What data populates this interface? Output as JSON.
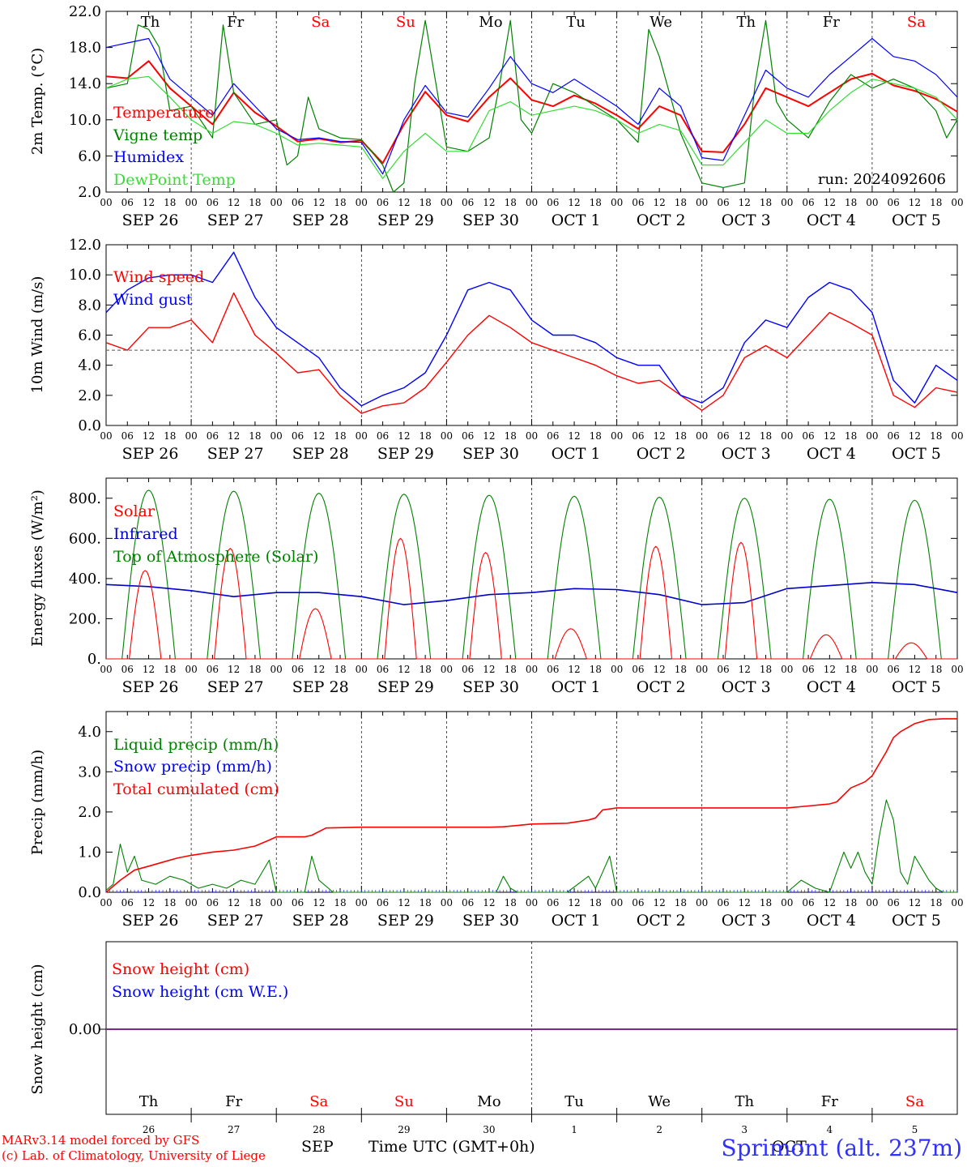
{
  "chart_data": [
    {
      "type": "line",
      "ylabel": "2m Temp. (°C)",
      "ylim": [
        2.0,
        22.0
      ],
      "yticks": [
        "2.0",
        "6.0",
        "10.0",
        "14.0",
        "18.0",
        "22.0"
      ],
      "annotation": "run: 2024092606",
      "series": [
        {
          "name": "Temperature",
          "color": "#ff0000",
          "x": [
            0,
            6,
            12,
            18,
            24,
            30,
            36,
            42,
            48,
            54,
            60,
            66,
            72,
            78,
            84,
            90,
            96,
            102,
            108,
            114,
            120,
            126,
            132,
            138,
            144,
            150,
            156,
            162,
            168,
            174,
            180,
            186,
            192,
            198,
            204,
            210,
            216,
            222,
            228,
            234,
            240
          ],
          "values": [
            14.8,
            14.6,
            16.5,
            13.5,
            11.5,
            9.5,
            13.0,
            10.8,
            9.3,
            7.6,
            7.9,
            7.5,
            7.7,
            5.2,
            9.5,
            13.1,
            10.5,
            9.8,
            12.5,
            14.6,
            12.2,
            11.5,
            12.7,
            11.8,
            10.5,
            9.0,
            11.5,
            10.5,
            6.5,
            6.4,
            9.5,
            13.5,
            12.5,
            11.5,
            13.0,
            14.5,
            15.1,
            13.8,
            13.2,
            12.3,
            10.9
          ]
        },
        {
          "name": "Vigne temp",
          "color": "#008000",
          "x": [
            0,
            6,
            9,
            12,
            15,
            18,
            24,
            30,
            33,
            36,
            42,
            48,
            51,
            54,
            57,
            60,
            66,
            72,
            78,
            81,
            84,
            87,
            90,
            96,
            102,
            108,
            111,
            114,
            117,
            120,
            126,
            132,
            138,
            144,
            150,
            153,
            156,
            162,
            168,
            174,
            180,
            183,
            186,
            189,
            192,
            198,
            204,
            210,
            216,
            222,
            228,
            234,
            237,
            240
          ],
          "values": [
            13.5,
            14.0,
            20.5,
            20.0,
            18.0,
            11.0,
            11.5,
            8.0,
            20.5,
            13.0,
            9.5,
            10.0,
            5.0,
            6.0,
            12.5,
            9.0,
            8.0,
            7.8,
            5.0,
            2.0,
            3.0,
            14.0,
            21.0,
            7.0,
            6.5,
            8.0,
            14.0,
            21.0,
            10.0,
            8.5,
            14.0,
            13.0,
            11.5,
            10.0,
            7.5,
            20.0,
            17.0,
            8.5,
            3.0,
            2.5,
            3.0,
            14.0,
            21.0,
            12.0,
            10.0,
            8.0,
            12.0,
            15.0,
            13.5,
            14.5,
            13.5,
            11.0,
            8.0,
            10.0
          ]
        },
        {
          "name": "Humidex",
          "color": "#0000ff",
          "x": [
            0,
            6,
            12,
            18,
            24,
            30,
            36,
            42,
            48,
            54,
            60,
            66,
            72,
            78,
            84,
            90,
            96,
            102,
            108,
            114,
            120,
            126,
            132,
            138,
            144,
            150,
            156,
            162,
            168,
            174,
            180,
            186,
            192,
            198,
            204,
            210,
            216,
            222,
            228,
            234,
            240
          ],
          "values": [
            18.0,
            18.5,
            19.0,
            14.5,
            12.5,
            10.5,
            14.0,
            11.5,
            9.0,
            7.8,
            8.0,
            7.6,
            7.5,
            4.0,
            10.0,
            13.8,
            10.8,
            10.3,
            13.5,
            17.0,
            14.0,
            13.0,
            14.5,
            13.0,
            11.5,
            9.5,
            13.5,
            11.5,
            5.8,
            5.5,
            10.5,
            15.5,
            13.5,
            12.5,
            15.0,
            17.0,
            19.0,
            17.0,
            16.5,
            15.0,
            12.5
          ]
        },
        {
          "name": "DewPoint Temp",
          "color": "#33dd33",
          "x": [
            0,
            6,
            12,
            18,
            24,
            30,
            36,
            42,
            48,
            54,
            60,
            66,
            72,
            78,
            84,
            90,
            96,
            102,
            108,
            114,
            120,
            126,
            132,
            138,
            144,
            150,
            156,
            162,
            168,
            174,
            180,
            186,
            192,
            198,
            204,
            210,
            216,
            222,
            228,
            234,
            240
          ],
          "values": [
            13.5,
            14.5,
            14.8,
            12.5,
            10.0,
            8.5,
            9.8,
            9.5,
            8.5,
            7.2,
            7.4,
            7.2,
            7.0,
            3.5,
            6.5,
            8.5,
            6.5,
            6.5,
            11.0,
            12.0,
            10.5,
            11.0,
            11.5,
            11.0,
            10.0,
            8.5,
            9.5,
            8.8,
            5.0,
            5.0,
            7.5,
            10.0,
            8.5,
            8.5,
            11.0,
            13.0,
            14.5,
            14.0,
            13.5,
            12.5,
            10.0
          ]
        }
      ]
    },
    {
      "type": "line",
      "ylabel": "10m Wind (m/s)",
      "ylim": [
        0.0,
        12.0
      ],
      "yticks": [
        "0.0",
        "2.0",
        "4.0",
        "6.0",
        "8.0",
        "10.0",
        "12.0"
      ],
      "reference_line": 5.0,
      "series": [
        {
          "name": "Wind speed",
          "color": "#ff0000",
          "x": [
            0,
            6,
            12,
            18,
            24,
            30,
            36,
            42,
            48,
            54,
            60,
            66,
            72,
            78,
            84,
            90,
            96,
            102,
            108,
            114,
            120,
            126,
            132,
            138,
            144,
            150,
            156,
            162,
            168,
            174,
            180,
            186,
            192,
            198,
            204,
            210,
            216,
            222,
            228,
            234,
            240
          ],
          "values": [
            5.5,
            5.0,
            6.5,
            6.5,
            7.0,
            5.5,
            8.8,
            6.0,
            4.8,
            3.5,
            3.7,
            2.0,
            0.8,
            1.3,
            1.5,
            2.5,
            4.2,
            6.0,
            7.3,
            6.5,
            5.5,
            5.0,
            4.5,
            4.0,
            3.3,
            2.8,
            3.0,
            2.0,
            1.0,
            2.0,
            4.5,
            5.3,
            4.5,
            6.0,
            7.5,
            6.8,
            6.0,
            2.0,
            1.2,
            2.5,
            2.2
          ]
        },
        {
          "name": "Wind gust",
          "color": "#0000ff",
          "x": [
            0,
            6,
            12,
            18,
            24,
            30,
            36,
            42,
            48,
            54,
            60,
            66,
            72,
            78,
            84,
            90,
            96,
            102,
            108,
            114,
            120,
            126,
            132,
            138,
            144,
            150,
            156,
            162,
            168,
            174,
            180,
            186,
            192,
            198,
            204,
            210,
            216,
            222,
            228,
            234,
            240
          ],
          "values": [
            7.5,
            9.0,
            9.8,
            10.0,
            10.0,
            9.5,
            11.5,
            8.5,
            6.5,
            5.5,
            4.5,
            2.5,
            1.3,
            2.0,
            2.5,
            3.5,
            6.0,
            9.0,
            9.5,
            9.0,
            7.0,
            6.0,
            6.0,
            5.5,
            4.5,
            4.0,
            4.0,
            2.0,
            1.5,
            2.5,
            5.5,
            7.0,
            6.5,
            8.5,
            9.5,
            9.0,
            7.5,
            3.0,
            1.5,
            4.0,
            3.0
          ]
        }
      ]
    },
    {
      "type": "line",
      "ylabel": "Energy fluxes (W/m²)",
      "ylim": [
        0,
        900
      ],
      "yticks": [
        "0.",
        "200.",
        "400.",
        "600.",
        "800."
      ],
      "daily_toa_peak": [
        840,
        835,
        825,
        820,
        815,
        810,
        805,
        800,
        795,
        790
      ],
      "daily_solar_peak": [
        440,
        550,
        250,
        600,
        530,
        150,
        560,
        580,
        120,
        80
      ],
      "series": [
        {
          "name": "Solar",
          "color": "#ff0000"
        },
        {
          "name": "Infrared",
          "color": "#0000cc",
          "x": [
            0,
            12,
            24,
            36,
            48,
            60,
            72,
            84,
            96,
            108,
            120,
            132,
            144,
            156,
            168,
            180,
            192,
            204,
            216,
            228,
            240
          ],
          "values": [
            370,
            360,
            340,
            310,
            330,
            330,
            310,
            270,
            290,
            320,
            330,
            350,
            345,
            320,
            270,
            280,
            350,
            365,
            380,
            370,
            330
          ]
        },
        {
          "name": "Top of Atmosphere (Solar)",
          "color": "#008000"
        }
      ]
    },
    {
      "type": "line",
      "ylabel": "Precip (mm/h)",
      "ylim": [
        0.0,
        4.5
      ],
      "yticks": [
        "0.0",
        "1.0",
        "2.0",
        "3.0",
        "4.0"
      ],
      "series": [
        {
          "name": "Liquid precip (mm/h)",
          "color": "#008000",
          "x": [
            0,
            2,
            4,
            6,
            8,
            10,
            14,
            18,
            22,
            26,
            30,
            34,
            38,
            42,
            46,
            48,
            52,
            56,
            58,
            60,
            64,
            68,
            72,
            80,
            90,
            100,
            110,
            112,
            114,
            116,
            120,
            130,
            136,
            138,
            140,
            142,
            144,
            150,
            160,
            170,
            180,
            192,
            196,
            200,
            204,
            208,
            210,
            212,
            214,
            216,
            218,
            220,
            222,
            224,
            226,
            228,
            230,
            232,
            234,
            236,
            240
          ],
          "values": [
            0.05,
            0.2,
            1.2,
            0.5,
            0.9,
            0.3,
            0.2,
            0.4,
            0.3,
            0.1,
            0.2,
            0.1,
            0.3,
            0.2,
            0.8,
            0.0,
            0.0,
            0.0,
            0.9,
            0.3,
            0.0,
            0.0,
            0.0,
            0.0,
            0.0,
            0.0,
            0.0,
            0.4,
            0.1,
            0.0,
            0.0,
            0.0,
            0.4,
            0.1,
            0.5,
            0.9,
            0.0,
            0.0,
            0.0,
            0.0,
            0.0,
            0.0,
            0.3,
            0.1,
            0.0,
            1.0,
            0.6,
            1.0,
            0.5,
            0.2,
            1.4,
            2.3,
            1.8,
            0.5,
            0.2,
            0.9,
            0.6,
            0.3,
            0.1,
            0.0,
            0.0
          ]
        },
        {
          "name": "Snow precip (mm/h)",
          "color": "#0000ff",
          "x": [
            0,
            240
          ],
          "values": [
            0.0,
            0.0
          ]
        },
        {
          "name": "Total cumulated (cm)",
          "color": "#ff0000",
          "x": [
            0,
            4,
            8,
            12,
            16,
            20,
            24,
            30,
            36,
            42,
            46,
            48,
            56,
            58,
            62,
            72,
            84,
            96,
            108,
            112,
            120,
            130,
            136,
            138,
            140,
            144,
            150,
            160,
            170,
            180,
            192,
            198,
            204,
            206,
            210,
            214,
            216,
            218,
            220,
            222,
            224,
            228,
            232,
            236,
            240
          ],
          "values": [
            0.0,
            0.3,
            0.55,
            0.65,
            0.75,
            0.85,
            0.92,
            1.0,
            1.05,
            1.15,
            1.3,
            1.38,
            1.38,
            1.42,
            1.6,
            1.62,
            1.62,
            1.62,
            1.62,
            1.63,
            1.7,
            1.72,
            1.8,
            1.85,
            2.05,
            2.1,
            2.1,
            2.1,
            2.1,
            2.1,
            2.1,
            2.15,
            2.2,
            2.25,
            2.6,
            2.75,
            2.9,
            3.2,
            3.5,
            3.85,
            4.0,
            4.2,
            4.3,
            4.32,
            4.32
          ]
        }
      ]
    },
    {
      "type": "line",
      "ylabel": "Snow height (cm)",
      "yticks": [
        "0.00"
      ],
      "series": [
        {
          "name": "Snow height (cm)",
          "color": "#ff0000",
          "x": [
            0,
            240
          ],
          "values": [
            0.0,
            0.0
          ]
        },
        {
          "name": "Snow height (cm W.E.)",
          "color": "#0000ff",
          "x": [
            0,
            240
          ],
          "values": [
            0.0,
            0.0
          ]
        }
      ]
    }
  ],
  "days": [
    {
      "abbr": "Th",
      "num": "26",
      "color": "#000000"
    },
    {
      "abbr": "Fr",
      "num": "27",
      "color": "#000000"
    },
    {
      "abbr": "Sa",
      "num": "28",
      "color": "#ff0000"
    },
    {
      "abbr": "Su",
      "num": "29",
      "color": "#ff0000"
    },
    {
      "abbr": "Mo",
      "num": "30",
      "color": "#000000"
    },
    {
      "abbr": "Tu",
      "num": "1",
      "color": "#000000"
    },
    {
      "abbr": "We",
      "num": "2",
      "color": "#000000"
    },
    {
      "abbr": "Th",
      "num": "3",
      "color": "#000000"
    },
    {
      "abbr": "Fr",
      "num": "4",
      "color": "#000000"
    },
    {
      "abbr": "Sa",
      "num": "5",
      "color": "#ff0000"
    }
  ],
  "date_labels": [
    "SEP 26",
    "SEP 27",
    "SEP 28",
    "SEP 29",
    "SEP 30",
    "OCT  1",
    "OCT  2",
    "OCT  3",
    "OCT  4",
    "OCT  5"
  ],
  "hour_ticks": [
    "00",
    "06",
    "12",
    "18"
  ],
  "footer": {
    "model": "MARv3.14 model forced by GFS",
    "copyright": "(c) Lab. of Climatology, University of Liege",
    "month_sep": "SEP",
    "time_axis": "Time UTC (GMT+0h)",
    "month_oct": "OCT",
    "station": "Sprimont (alt. 237m)"
  }
}
